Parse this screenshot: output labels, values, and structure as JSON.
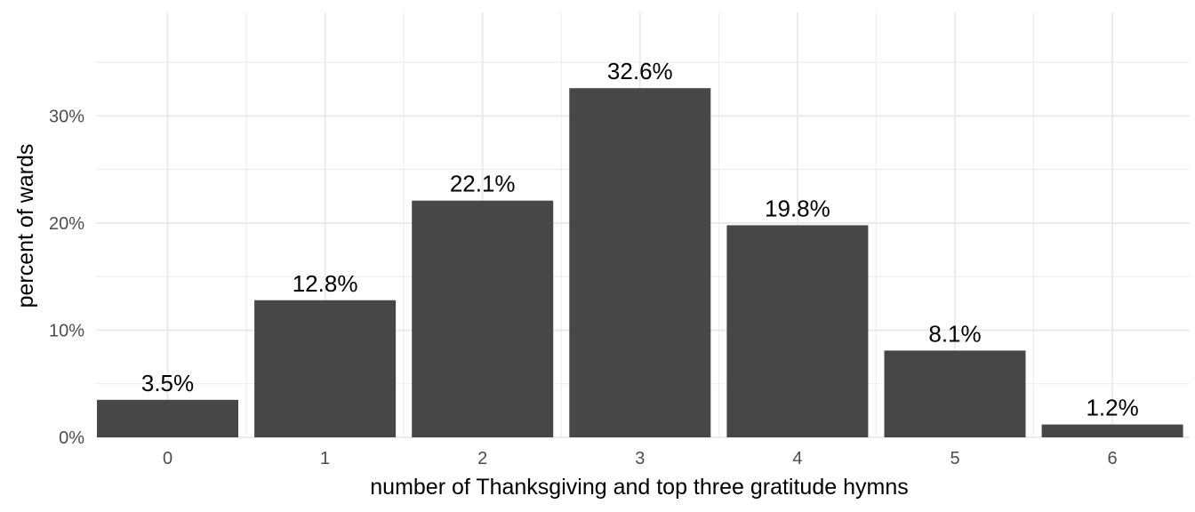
{
  "chart_data": {
    "type": "bar",
    "categories": [
      "0",
      "1",
      "2",
      "3",
      "4",
      "5",
      "6"
    ],
    "values": [
      3.5,
      12.8,
      22.1,
      32.6,
      19.8,
      8.1,
      1.2
    ],
    "data_labels": [
      "3.5%",
      "12.8%",
      "22.1%",
      "32.6%",
      "19.8%",
      "8.1%",
      "1.2%"
    ],
    "title": "",
    "xlabel": "number of Thanksgiving and top three gratitude hymns",
    "ylabel": "percent of wards",
    "ylim": [
      0,
      36
    ],
    "yticks": [
      0,
      10,
      20,
      30
    ],
    "ytick_labels": [
      "0%",
      "10%",
      "20%",
      "30%"
    ],
    "grid": true,
    "legend": "none",
    "colors": {
      "bar": "#474747",
      "grid": "#ebebeb",
      "tick_text": "#4d4d4d",
      "label_text": "#000000",
      "background": "#ffffff"
    }
  }
}
